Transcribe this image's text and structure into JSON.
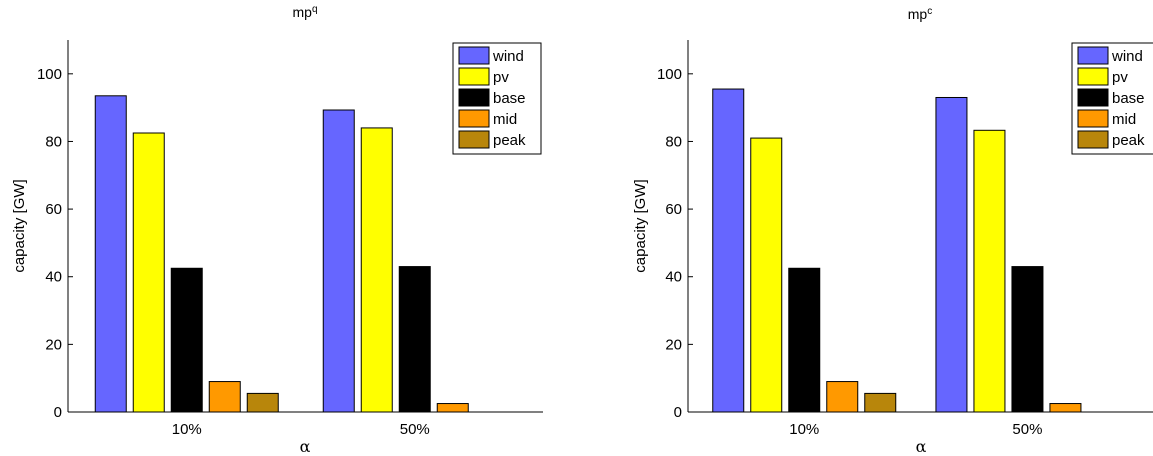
{
  "chart_data": [
    {
      "type": "bar",
      "title_base": "mp",
      "title_sup": "q",
      "xlabel": "α",
      "ylabel": "capacity [GW]",
      "ylim": [
        0,
        110
      ],
      "yticks": [
        0,
        20,
        40,
        60,
        80,
        100
      ],
      "categories": [
        "10%",
        "50%"
      ],
      "legend_position": "top-right",
      "series": [
        {
          "name": "wind",
          "color": "#6666ff",
          "values": [
            93.5,
            89.3
          ]
        },
        {
          "name": "pv",
          "color": "#ffff00",
          "values": [
            82.5,
            84.0
          ]
        },
        {
          "name": "base",
          "color": "#000000",
          "values": [
            42.5,
            43.0
          ]
        },
        {
          "name": "mid",
          "color": "#ff9900",
          "values": [
            9.0,
            2.5
          ]
        },
        {
          "name": "peak",
          "color": "#b8860b",
          "values": [
            5.5,
            0
          ]
        }
      ]
    },
    {
      "type": "bar",
      "title_base": "mp",
      "title_sup": "c",
      "xlabel": "α",
      "ylabel": "capacity [GW]",
      "ylim": [
        0,
        110
      ],
      "yticks": [
        0,
        20,
        40,
        60,
        80,
        100
      ],
      "categories": [
        "10%",
        "50%"
      ],
      "legend_position": "top-right",
      "series": [
        {
          "name": "wind",
          "color": "#6666ff",
          "values": [
            95.5,
            93.0
          ]
        },
        {
          "name": "pv",
          "color": "#ffff00",
          "values": [
            81.0,
            83.3
          ]
        },
        {
          "name": "base",
          "color": "#000000",
          "values": [
            42.5,
            43.0
          ]
        },
        {
          "name": "mid",
          "color": "#ff9900",
          "values": [
            9.0,
            2.5
          ]
        },
        {
          "name": "peak",
          "color": "#b8860b",
          "values": [
            5.5,
            0
          ]
        }
      ]
    }
  ]
}
